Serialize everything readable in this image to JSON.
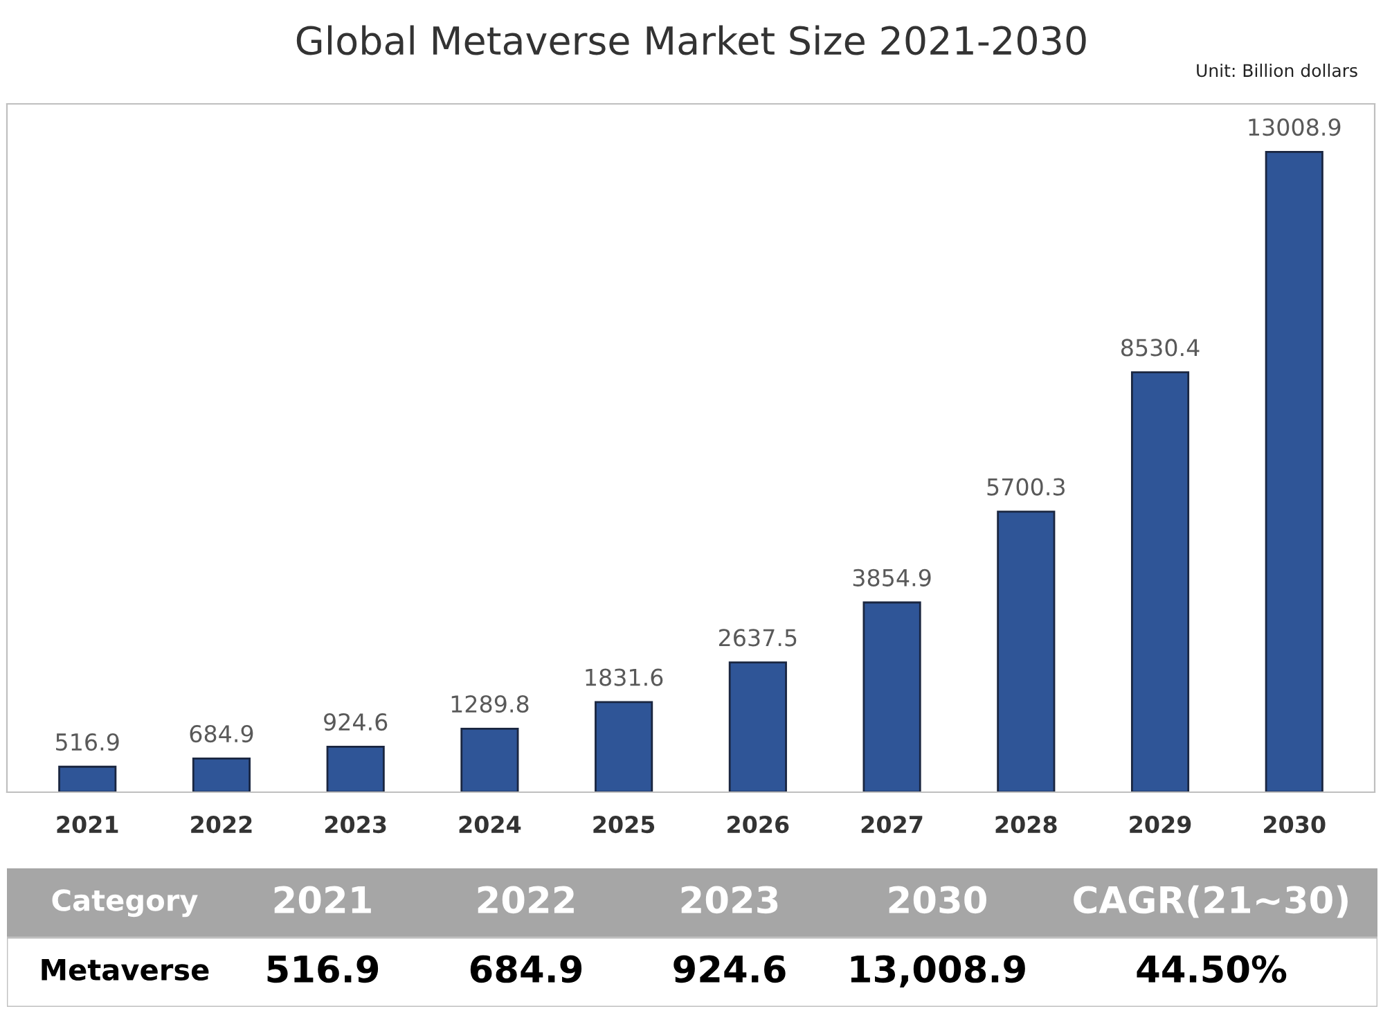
{
  "chart_data": {
    "type": "bar",
    "title": "Global Metaverse Market Size 2021-2030",
    "categories": [
      "2021",
      "2022",
      "2023",
      "2024",
      "2025",
      "2026",
      "2027",
      "2028",
      "2029",
      "2030"
    ],
    "values": [
      516.9,
      684.9,
      924.6,
      1289.8,
      1831.6,
      2637.5,
      3854.9,
      5700.3,
      8530.4,
      13008.9
    ],
    "color": "#2f5597",
    "data_labels": true,
    "grid": false,
    "legend": false,
    "annotations": [
      "Unit: Billion dollars",
      "Category",
      "2021",
      "2022",
      "2023",
      "2030",
      "CAGR(21~30)",
      "Metaverse",
      "516.9",
      "684.9",
      "924.6",
      "13,008.9",
      "44.50%"
    ]
  }
}
